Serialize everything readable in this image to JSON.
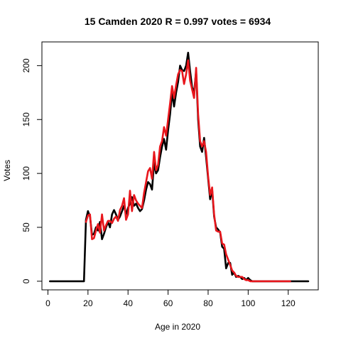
{
  "chart_data": {
    "type": "line",
    "title": "15 Camden 2020 R = 0.997 votes = 6934",
    "xlabel": "Age in 2020",
    "ylabel": "Votes",
    "xlim": [
      -3,
      135
    ],
    "ylim": [
      -8,
      222
    ],
    "x_ticks": [
      0,
      20,
      40,
      60,
      80,
      100,
      120
    ],
    "y_ticks": [
      0,
      50,
      100,
      150,
      200
    ],
    "grid": false,
    "legend": "none",
    "series": [
      {
        "color": "#000000",
        "points": [
          [
            1,
            0
          ],
          [
            2,
            0
          ],
          [
            3,
            0
          ],
          [
            4,
            0
          ],
          [
            5,
            0
          ],
          [
            6,
            0
          ],
          [
            7,
            0
          ],
          [
            8,
            0
          ],
          [
            9,
            0
          ],
          [
            10,
            0
          ],
          [
            11,
            0
          ],
          [
            12,
            0
          ],
          [
            13,
            0
          ],
          [
            14,
            0
          ],
          [
            15,
            0
          ],
          [
            16,
            0
          ],
          [
            17,
            0
          ],
          [
            18,
            0
          ],
          [
            19,
            57
          ],
          [
            20,
            65
          ],
          [
            21,
            60
          ],
          [
            22,
            43
          ],
          [
            23,
            44
          ],
          [
            24,
            50
          ],
          [
            25,
            47
          ],
          [
            26,
            55
          ],
          [
            27,
            39
          ],
          [
            28,
            44
          ],
          [
            29,
            50
          ],
          [
            30,
            55
          ],
          [
            31,
            50
          ],
          [
            32,
            62
          ],
          [
            33,
            66
          ],
          [
            34,
            62
          ],
          [
            35,
            57
          ],
          [
            36,
            60
          ],
          [
            37,
            65
          ],
          [
            38,
            70
          ],
          [
            39,
            62
          ],
          [
            40,
            68
          ],
          [
            41,
            72
          ],
          [
            42,
            78
          ],
          [
            43,
            70
          ],
          [
            44,
            72
          ],
          [
            45,
            68
          ],
          [
            46,
            65
          ],
          [
            47,
            67
          ],
          [
            48,
            75
          ],
          [
            49,
            85
          ],
          [
            50,
            92
          ],
          [
            51,
            90
          ],
          [
            52,
            85
          ],
          [
            53,
            110
          ],
          [
            54,
            100
          ],
          [
            55,
            103
          ],
          [
            56,
            115
          ],
          [
            57,
            125
          ],
          [
            58,
            132
          ],
          [
            59,
            122
          ],
          [
            60,
            140
          ],
          [
            61,
            155
          ],
          [
            62,
            175
          ],
          [
            63,
            162
          ],
          [
            64,
            175
          ],
          [
            65,
            185
          ],
          [
            66,
            200
          ],
          [
            67,
            196
          ],
          [
            68,
            195
          ],
          [
            69,
            200
          ],
          [
            70,
            212
          ],
          [
            71,
            195
          ],
          [
            72,
            180
          ],
          [
            73,
            175
          ],
          [
            74,
            195
          ],
          [
            75,
            150
          ],
          [
            76,
            125
          ],
          [
            77,
            120
          ],
          [
            78,
            133
          ],
          [
            79,
            115
          ],
          [
            80,
            95
          ],
          [
            81,
            76
          ],
          [
            82,
            85
          ],
          [
            83,
            60
          ],
          [
            84,
            50
          ],
          [
            85,
            48
          ],
          [
            86,
            45
          ],
          [
            87,
            32
          ],
          [
            88,
            30
          ],
          [
            89,
            12
          ],
          [
            90,
            17
          ],
          [
            91,
            17
          ],
          [
            92,
            6
          ],
          [
            93,
            8
          ],
          [
            94,
            4
          ],
          [
            95,
            5
          ],
          [
            96,
            4
          ],
          [
            97,
            2
          ],
          [
            98,
            3
          ],
          [
            99,
            1
          ],
          [
            100,
            3
          ],
          [
            101,
            1
          ],
          [
            102,
            0
          ],
          [
            103,
            0
          ],
          [
            104,
            0
          ],
          [
            105,
            0
          ],
          [
            106,
            0
          ],
          [
            107,
            0
          ],
          [
            108,
            0
          ],
          [
            109,
            0
          ],
          [
            110,
            0
          ],
          [
            111,
            0
          ],
          [
            112,
            0
          ],
          [
            113,
            0
          ],
          [
            114,
            0
          ],
          [
            115,
            0
          ],
          [
            116,
            0
          ],
          [
            117,
            0
          ],
          [
            118,
            0
          ],
          [
            119,
            0
          ],
          [
            120,
            0
          ],
          [
            121,
            0
          ],
          [
            122,
            0
          ],
          [
            123,
            0
          ],
          [
            124,
            0
          ],
          [
            125,
            0
          ],
          [
            126,
            0
          ],
          [
            127,
            0
          ],
          [
            128,
            0
          ],
          [
            129,
            0
          ],
          [
            130,
            0
          ]
        ]
      },
      {
        "color": "#e8161c",
        "points": [
          [
            19,
            55
          ],
          [
            20,
            61
          ],
          [
            21,
            62
          ],
          [
            22,
            39
          ],
          [
            23,
            40
          ],
          [
            24,
            47
          ],
          [
            25,
            53
          ],
          [
            26,
            45
          ],
          [
            27,
            62
          ],
          [
            28,
            47
          ],
          [
            29,
            52
          ],
          [
            30,
            56
          ],
          [
            31,
            56
          ],
          [
            32,
            54
          ],
          [
            33,
            58
          ],
          [
            34,
            60
          ],
          [
            35,
            56
          ],
          [
            36,
            66
          ],
          [
            37,
            70
          ],
          [
            38,
            77
          ],
          [
            39,
            57
          ],
          [
            40,
            62
          ],
          [
            41,
            84
          ],
          [
            42,
            65
          ],
          [
            43,
            80
          ],
          [
            44,
            75
          ],
          [
            45,
            72
          ],
          [
            46,
            70
          ],
          [
            47,
            68
          ],
          [
            48,
            82
          ],
          [
            49,
            92
          ],
          [
            50,
            102
          ],
          [
            51,
            105
          ],
          [
            52,
            95
          ],
          [
            53,
            120
          ],
          [
            54,
            103
          ],
          [
            55,
            108
          ],
          [
            56,
            125
          ],
          [
            57,
            130
          ],
          [
            58,
            143
          ],
          [
            59,
            135
          ],
          [
            60,
            150
          ],
          [
            61,
            165
          ],
          [
            62,
            181
          ],
          [
            63,
            170
          ],
          [
            64,
            182
          ],
          [
            65,
            192
          ],
          [
            66,
            196
          ],
          [
            67,
            195
          ],
          [
            68,
            183
          ],
          [
            69,
            192
          ],
          [
            70,
            205
          ],
          [
            71,
            186
          ],
          [
            72,
            178
          ],
          [
            73,
            170
          ],
          [
            74,
            198
          ],
          [
            75,
            155
          ],
          [
            76,
            130
          ],
          [
            77,
            125
          ],
          [
            78,
            130
          ],
          [
            79,
            120
          ],
          [
            80,
            97
          ],
          [
            81,
            80
          ],
          [
            82,
            87
          ],
          [
            83,
            62
          ],
          [
            84,
            47
          ],
          [
            85,
            46
          ],
          [
            86,
            46
          ],
          [
            87,
            35
          ],
          [
            88,
            34
          ],
          [
            89,
            25
          ],
          [
            90,
            20
          ],
          [
            91,
            15
          ],
          [
            92,
            10
          ],
          [
            93,
            8
          ],
          [
            94,
            5
          ],
          [
            95,
            4
          ],
          [
            96,
            4
          ],
          [
            97,
            4
          ],
          [
            98,
            2
          ],
          [
            99,
            1
          ],
          [
            100,
            1
          ],
          [
            101,
            0
          ],
          [
            102,
            0
          ],
          [
            103,
            0
          ],
          [
            104,
            0
          ],
          [
            105,
            0
          ],
          [
            106,
            0
          ],
          [
            107,
            0
          ],
          [
            108,
            0
          ],
          [
            109,
            0
          ],
          [
            110,
            0
          ],
          [
            111,
            0
          ],
          [
            112,
            0
          ],
          [
            120,
            0
          ],
          [
            121,
            0
          ]
        ]
      }
    ]
  }
}
